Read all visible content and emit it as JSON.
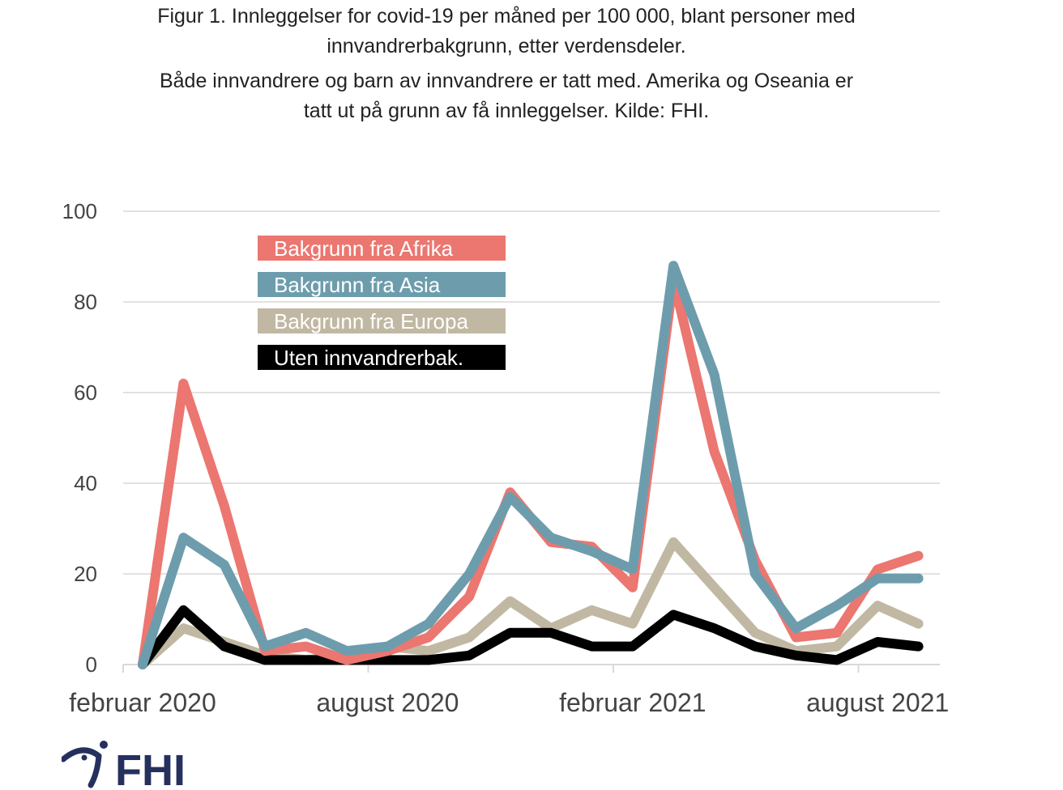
{
  "header": {
    "title": "Figur 1. Innleggelser for covid-19 per måned per 100 000, blant personer med innvandrerbakgrunn, etter verdensdeler.",
    "subtitle": "Både innvandrere og barn av innvandrere er tatt med. Amerika og Oseania er tatt ut på grunn av få innleggelser. Kilde: FHI."
  },
  "logo": {
    "text": "FHI",
    "color": "#25305e"
  },
  "chart_data": {
    "type": "line",
    "title": "Figur 1. Innleggelser for covid-19 per måned per 100 000, blant personer med innvandrerbakgrunn, etter verdensdeler.",
    "xlabel": "",
    "ylabel": "",
    "ylim": [
      0,
      100
    ],
    "yticks": [
      0,
      20,
      40,
      60,
      80,
      100
    ],
    "grid": true,
    "legend_position": "top-left",
    "x": [
      "2020-02",
      "2020-03",
      "2020-04",
      "2020-05",
      "2020-06",
      "2020-07",
      "2020-08",
      "2020-09",
      "2020-10",
      "2020-11",
      "2020-12",
      "2021-01",
      "2021-02",
      "2021-03",
      "2021-04",
      "2021-05",
      "2021-06",
      "2021-07",
      "2021-08",
      "2021-09"
    ],
    "x_tick_labels": [
      {
        "label": "februar 2020",
        "index": 0
      },
      {
        "label": "august 2020",
        "index": 6
      },
      {
        "label": "februar 2021",
        "index": 12
      },
      {
        "label": "august 2021",
        "index": 18
      }
    ],
    "series": [
      {
        "name": "Bakgrunn fra Afrika",
        "color": "#ec7670",
        "values": [
          0,
          62,
          35,
          3,
          4,
          1,
          3,
          6,
          15,
          38,
          27,
          26,
          17,
          85,
          47,
          23,
          6,
          7,
          21,
          24
        ]
      },
      {
        "name": "Bakgrunn fra Asia",
        "color": "#6d9dad",
        "values": [
          0,
          28,
          22,
          4,
          7,
          3,
          4,
          9,
          20,
          37,
          28,
          25,
          21,
          88,
          64,
          20,
          8,
          13,
          19,
          19
        ]
      },
      {
        "name": "Bakgrunn fra Europa",
        "color": "#c1b8a3",
        "values": [
          0,
          8,
          5,
          2,
          1,
          2,
          4,
          3,
          6,
          14,
          8,
          12,
          9,
          27,
          17,
          7,
          3,
          4,
          13,
          9
        ]
      },
      {
        "name": "Uten innvandrerbak.",
        "color": "#000000",
        "values": [
          0,
          12,
          4,
          1,
          1,
          1,
          1,
          1,
          2,
          7,
          7,
          4,
          4,
          11,
          8,
          4,
          2,
          1,
          5,
          4
        ]
      }
    ]
  }
}
